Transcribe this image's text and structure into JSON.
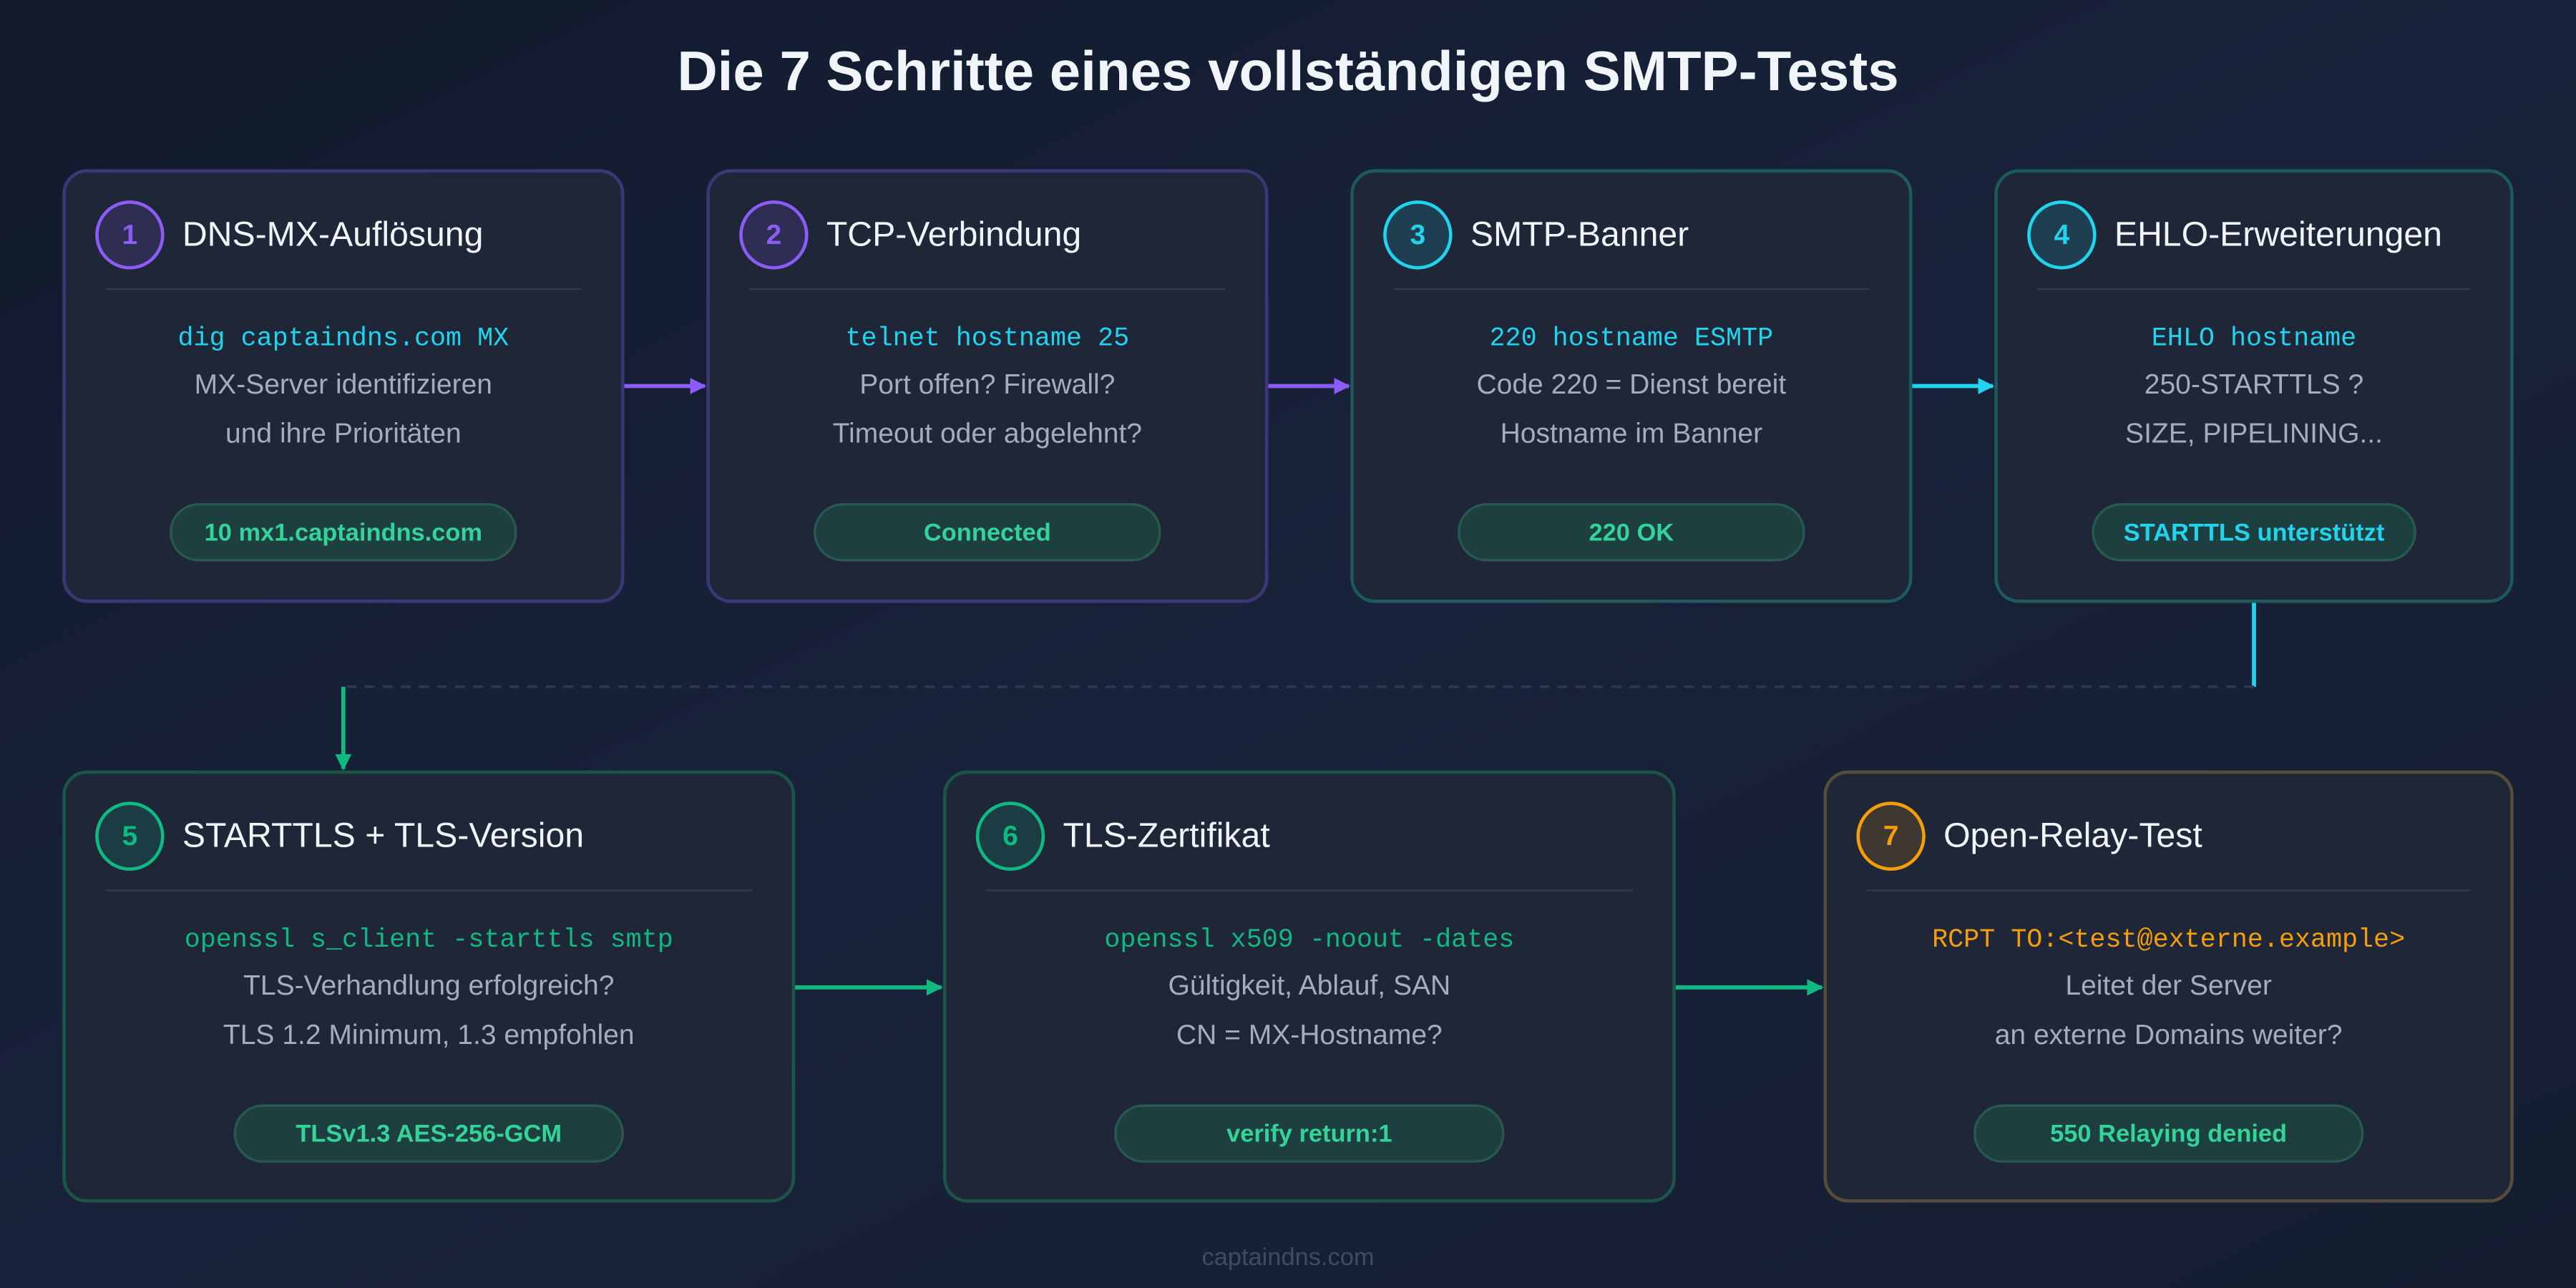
{
  "title": "Die 7 Schritte eines vollständigen SMTP-Tests",
  "steps": [
    {
      "number": "1",
      "title": "DNS-MX-Auflösung",
      "command": "dig captaindns.com MX",
      "lines": [
        "MX-Server identifizieren",
        "und ihre Prioritäten"
      ],
      "badge": "10 mx1.captaindns.com"
    },
    {
      "number": "2",
      "title": "TCP-Verbindung",
      "command": "telnet hostname 25",
      "lines": [
        "Port offen? Firewall?",
        "Timeout oder abgelehnt?"
      ],
      "badge": "Connected"
    },
    {
      "number": "3",
      "title": "SMTP-Banner",
      "command": "220 hostname ESMTP",
      "lines": [
        "Code 220 = Dienst bereit",
        "Hostname im Banner"
      ],
      "badge": "220 OK"
    },
    {
      "number": "4",
      "title": "EHLO-Erweiterungen",
      "command": "EHLO hostname",
      "lines": [
        "250-STARTTLS ?",
        "SIZE, PIPELINING..."
      ],
      "badge": "STARTTLS unterstützt"
    },
    {
      "number": "5",
      "title": "STARTTLS + TLS-Version",
      "command": "openssl s_client -starttls smtp",
      "lines": [
        "TLS-Verhandlung erfolgreich?",
        "TLS 1.2 Minimum, 1.3 empfohlen"
      ],
      "badge": "TLSv1.3 AES-256-GCM"
    },
    {
      "number": "6",
      "title": "TLS-Zertifikat",
      "command": "openssl x509 -noout -dates",
      "lines": [
        "Gültigkeit, Ablauf, SAN",
        "CN = MX-Hostname?"
      ],
      "badge": "verify return:1"
    },
    {
      "number": "7",
      "title": "Open-Relay-Test",
      "command": "RCPT TO:<test@externe.example>",
      "lines": [
        "Leitet der Server",
        "an externe Domains weiter?"
      ],
      "badge": "550 Relaying denied"
    }
  ],
  "footer": "captaindns.com"
}
